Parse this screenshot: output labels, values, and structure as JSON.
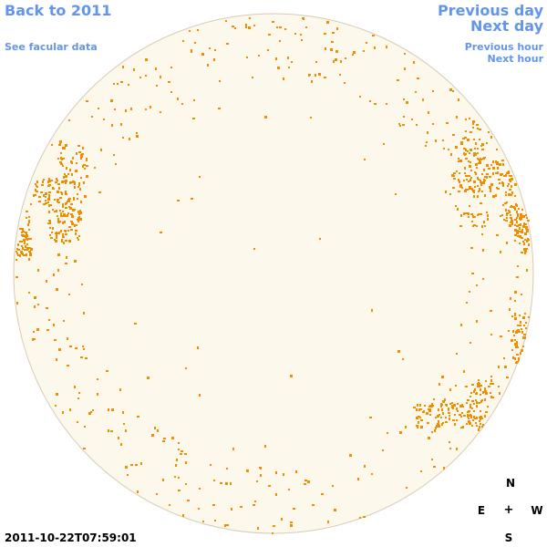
{
  "nav": {
    "back": "Back to 2011",
    "facular": "See facular data",
    "previous_day": "Previous day",
    "next_day": "Next day",
    "previous_hour": "Previous hour",
    "next_hour": "Next hour"
  },
  "timestamp": "2011-10-22T07:59:01",
  "compass": {
    "north": "N",
    "south": "S",
    "east": "E",
    "west": "W",
    "center": "+"
  },
  "colors": {
    "link": "#6495ed",
    "disk_fill": "#fdf8ec",
    "disk_border": "#d8cbb5",
    "feature": "#f28c00"
  }
}
